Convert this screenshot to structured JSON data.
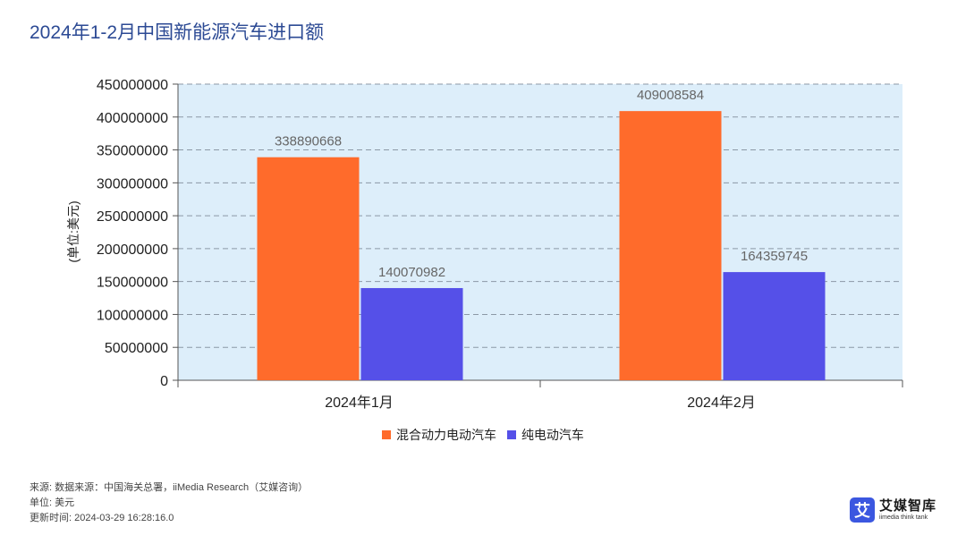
{
  "title": "2024年1-2月中国新能源汽车进口额",
  "chart_data": {
    "type": "bar",
    "title": "2024年1-2月中国新能源汽车进口额",
    "categories": [
      "2024年1月",
      "2024年2月"
    ],
    "series": [
      {
        "name": "混合动力电动汽车",
        "values": [
          338890668,
          409008584
        ],
        "color": "#ff6b2b"
      },
      {
        "name": "纯电动汽车",
        "values": [
          140070982,
          164359745
        ],
        "color": "#5550e8"
      }
    ],
    "ylabel": "(单位:美元)",
    "xlabel": "",
    "ylim": [
      0,
      450000000
    ],
    "yticks": [
      0,
      50000000,
      100000000,
      150000000,
      200000000,
      250000000,
      300000000,
      350000000,
      400000000,
      450000000
    ],
    "grid": true,
    "legend": "bottom"
  },
  "legend": {
    "items": [
      {
        "label": "混合动力电动汽车",
        "color": "#ff6b2b"
      },
      {
        "label": "纯电动汽车",
        "color": "#5550e8"
      }
    ]
  },
  "footer": {
    "source": "来源: 数据来源：中国海关总署，iiMedia Research（艾媒咨询）",
    "unit": "单位: 美元",
    "updated": "更新时间: 2024-03-29 16:28:16.0"
  },
  "logo": {
    "mark": "艾",
    "name_cn": "艾媒智库",
    "name_en": "iimedia think tank"
  }
}
